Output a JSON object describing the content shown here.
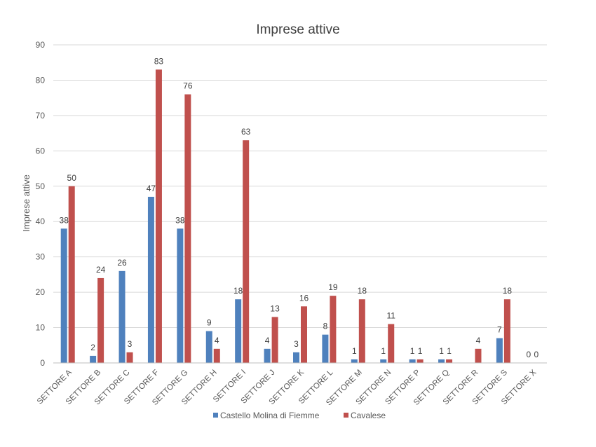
{
  "chart_data": {
    "type": "bar",
    "title": "Imprese attive",
    "xlabel": "",
    "ylabel": "Imprese attive",
    "ylim": [
      0,
      90
    ],
    "yticks": [
      0,
      10,
      20,
      30,
      40,
      50,
      60,
      70,
      80,
      90
    ],
    "grid": true,
    "legend_position": "bottom",
    "categories": [
      "SETTORE A",
      "SETTORE B",
      "SETTORE C",
      "SETTORE F",
      "SETTORE G",
      "SETTORE H",
      "SETTORE I",
      "SETTORE J",
      "SETTORE K",
      "SETTORE L",
      "SETTORE M",
      "SETTORE N",
      "SETTORE P",
      "SETTORE Q",
      "SETTORE R",
      "SETTORE S",
      "SETTORE X"
    ],
    "series": [
      {
        "name": "Castello Molina di Fiemme",
        "color": "#4f81bd",
        "values": [
          38,
          2,
          26,
          47,
          38,
          9,
          18,
          4,
          3,
          8,
          1,
          1,
          1,
          1,
          null,
          7,
          0
        ]
      },
      {
        "name": "Cavalese",
        "color": "#c0504d",
        "values": [
          50,
          24,
          3,
          83,
          76,
          4,
          63,
          13,
          16,
          19,
          18,
          11,
          1,
          1,
          4,
          18,
          0
        ]
      }
    ]
  }
}
